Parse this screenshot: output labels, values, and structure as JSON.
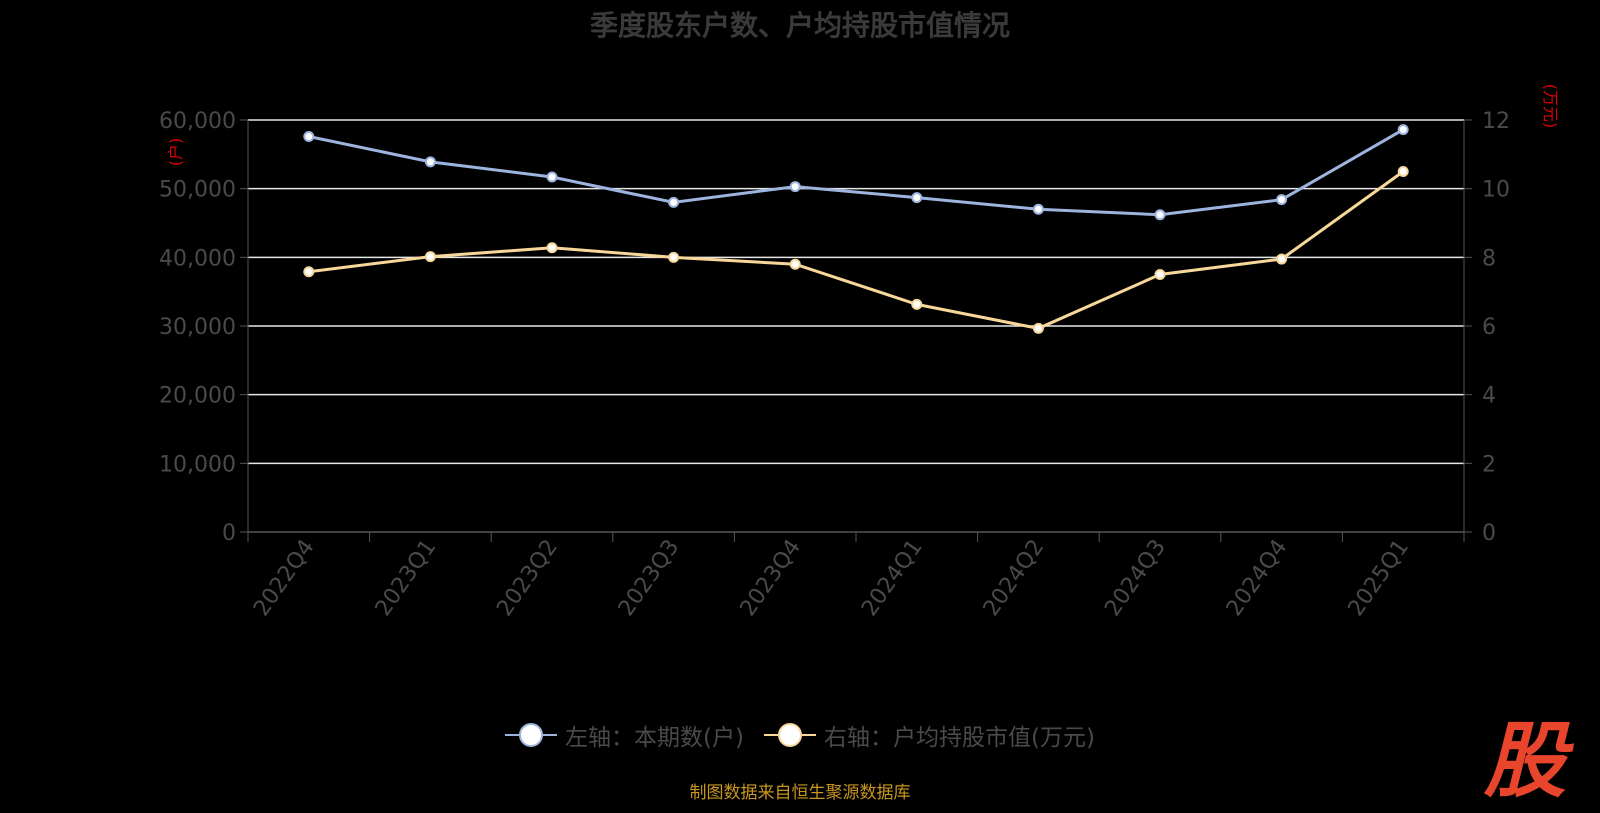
{
  "chart_data": {
    "type": "line",
    "title": "季度股东户数、户均持股市值情况",
    "categories": [
      "2022Q4",
      "2023Q1",
      "2023Q2",
      "2023Q3",
      "2023Q4",
      "2024Q1",
      "2024Q2",
      "2024Q3",
      "2024Q4",
      "2025Q1"
    ],
    "left_axis": {
      "unit": "(户)",
      "ylim": [
        0,
        60000
      ],
      "ticks": [
        "0",
        "10,000",
        "20,000",
        "30,000",
        "40,000",
        "50,000",
        "60,000"
      ]
    },
    "right_axis": {
      "unit": "(万元)",
      "ylim": [
        0,
        12
      ],
      "ticks": [
        "0",
        "2",
        "4",
        "6",
        "8",
        "10",
        "12"
      ]
    },
    "series": [
      {
        "name": "左轴：本期数(户)",
        "axis": "left",
        "color": "#9db4df",
        "values": [
          57600,
          53900,
          51700,
          48000,
          50300,
          48700,
          47000,
          46200,
          48400,
          58600
        ]
      },
      {
        "name": "右轴：户均持股市值(万元)",
        "axis": "right",
        "color": "#f8d89a",
        "values": [
          7.58,
          8.02,
          8.28,
          8.0,
          7.8,
          6.63,
          5.93,
          7.5,
          7.95,
          10.5
        ]
      }
    ],
    "grid": true,
    "legend_position": "bottom"
  },
  "source_note": "制图数据来自恒生聚源数据库",
  "watermark": "股"
}
